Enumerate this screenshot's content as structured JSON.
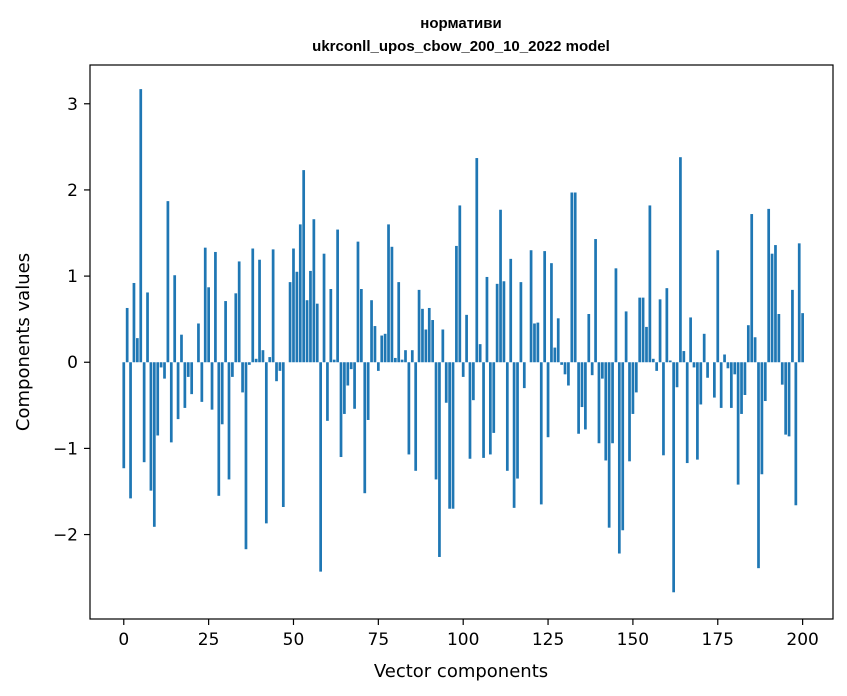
{
  "chart_data": {
    "type": "bar",
    "title_line1": "нормативи",
    "title_line2": "ukrconll_upos_cbow_200_10_2022 model",
    "xlabel": "Vector components",
    "ylabel": "Components values",
    "xlim": [
      -9.95,
      208.95
    ],
    "ylim": [
      -2.98,
      3.45
    ],
    "xticks": [
      0,
      25,
      50,
      75,
      100,
      125,
      150,
      175,
      200
    ],
    "yticks": [
      -2,
      -1,
      0,
      1,
      2,
      3
    ],
    "bar_color": "#1f77b4",
    "values": [
      -1.23,
      0.63,
      -1.58,
      0.92,
      0.28,
      3.17,
      -1.16,
      0.81,
      -1.49,
      -1.91,
      -0.85,
      -0.06,
      -0.19,
      1.87,
      -0.93,
      1.01,
      -0.66,
      0.32,
      -0.53,
      -0.17,
      -0.37,
      0.0,
      0.45,
      -0.46,
      1.33,
      0.87,
      -0.55,
      1.28,
      -1.55,
      -0.72,
      0.71,
      -1.36,
      -0.17,
      0.8,
      1.17,
      -0.35,
      -2.17,
      -0.03,
      1.32,
      0.04,
      1.19,
      0.14,
      -1.87,
      0.06,
      1.31,
      -0.22,
      -0.1,
      -1.68,
      0.0,
      0.93,
      1.32,
      1.05,
      1.6,
      2.23,
      0.72,
      1.06,
      1.66,
      0.68,
      -2.43,
      1.26,
      -0.68,
      0.85,
      0.03,
      1.54,
      -1.1,
      -0.6,
      -0.27,
      -0.08,
      -0.54,
      1.4,
      0.85,
      -1.52,
      -0.67,
      0.72,
      0.42,
      -0.1,
      0.31,
      0.33,
      1.6,
      1.34,
      0.05,
      0.93,
      0.03,
      0.14,
      -1.07,
      0.14,
      -1.26,
      0.84,
      0.62,
      0.38,
      0.63,
      0.49,
      -1.36,
      -2.26,
      0.38,
      -0.47,
      -1.7,
      -1.7,
      1.35,
      1.82,
      -0.17,
      0.55,
      -1.12,
      -0.44,
      2.37,
      0.21,
      -1.11,
      0.99,
      -1.07,
      -0.82,
      0.91,
      1.77,
      0.94,
      -1.26,
      1.2,
      -1.69,
      -1.35,
      0.93,
      -0.3,
      0.0,
      1.3,
      0.45,
      0.46,
      -1.65,
      1.29,
      -0.87,
      1.15,
      0.17,
      0.51,
      -0.03,
      -0.14,
      -0.27,
      1.97,
      1.97,
      -0.83,
      -0.52,
      -0.78,
      0.56,
      -0.15,
      1.43,
      -0.94,
      -0.19,
      -1.14,
      -1.92,
      -0.94,
      1.09,
      -2.22,
      -1.95,
      0.59,
      -1.15,
      -0.6,
      -0.35,
      0.75,
      0.75,
      0.41,
      1.82,
      0.04,
      -0.1,
      0.73,
      -1.08,
      0.86,
      0.02,
      -2.67,
      -0.29,
      2.38,
      0.13,
      -1.17,
      0.52,
      -0.06,
      -1.13,
      -0.49,
      0.33,
      -0.18,
      0.0,
      -0.41,
      1.3,
      -0.53,
      0.09,
      -0.07,
      -0.53,
      -0.14,
      -1.42,
      -0.6,
      -0.38,
      0.43,
      1.72,
      0.29,
      -2.39,
      -1.3,
      -0.45,
      1.78,
      1.26,
      1.36,
      0.56,
      -0.26,
      -0.84,
      -0.86,
      0.84,
      -1.66,
      1.38,
      0.57
    ]
  }
}
